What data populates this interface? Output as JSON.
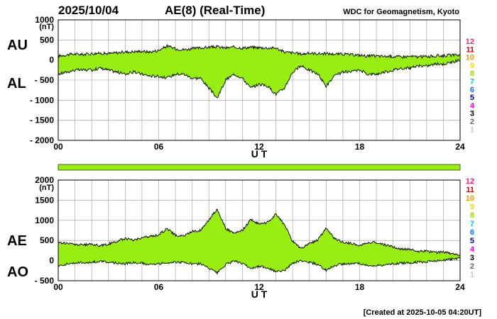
{
  "header": {
    "date": "2025/10/04",
    "title": "AE(8)  (Real-Time)",
    "source": "WDC for Geomagnetism, Kyoto"
  },
  "footer": {
    "created": "[Created at 2025-10-05 04:20UT]"
  },
  "station_legend": {
    "labels": [
      "12",
      "11",
      "10",
      "9",
      "8",
      "7",
      "6",
      "5",
      "4",
      "3",
      "2",
      "1"
    ],
    "colors": [
      "#ff1f7a",
      "#e00000",
      "#ff9900",
      "#f2e000",
      "#99dd00",
      "#00cccc",
      "#0077ff",
      "#0000aa",
      "#ee00ee",
      "#000000",
      "#666666",
      "#c8c8c8"
    ]
  },
  "colors": {
    "fill": "#99ee11",
    "line": "#000000",
    "grid": "#999999",
    "coverage_bar": "#99ee11"
  },
  "chart_data": [
    {
      "type": "area",
      "panel": "AU-AL",
      "label_upper": "AU",
      "label_lower": "AL",
      "unit": "(nT)",
      "xlabel": "U T",
      "xlim": [
        0,
        24
      ],
      "ylim": [
        -2000,
        1000
      ],
      "x_ticks": [
        "00",
        "06",
        "12",
        "18",
        "24"
      ],
      "y_ticks": [
        "1000",
        "500",
        "0",
        "- 500",
        "- 1000",
        "- 1500",
        "- 2000"
      ],
      "y_tick_values": [
        1000,
        500,
        0,
        -500,
        -1000,
        -1500,
        -2000
      ],
      "grid": true,
      "x": [
        0,
        0.5,
        1,
        1.5,
        2,
        2.5,
        3,
        3.5,
        4,
        4.5,
        5,
        5.5,
        6,
        6.5,
        7,
        7.5,
        8,
        8.5,
        9,
        9.5,
        10,
        10.5,
        11,
        11.5,
        12,
        12.5,
        13,
        13.5,
        14,
        14.5,
        15,
        15.5,
        16,
        16.5,
        17,
        17.5,
        18,
        18.5,
        19,
        19.5,
        20,
        20.5,
        21,
        21.5,
        22,
        22.5,
        23,
        23.5,
        24
      ],
      "series": [
        {
          "name": "AU",
          "values": [
            100,
            130,
            150,
            140,
            160,
            170,
            160,
            180,
            200,
            210,
            220,
            200,
            240,
            350,
            280,
            260,
            280,
            300,
            320,
            330,
            300,
            320,
            300,
            320,
            310,
            300,
            300,
            200,
            180,
            150,
            170,
            160,
            160,
            150,
            150,
            130,
            120,
            100,
            100,
            90,
            90,
            80,
            90,
            80,
            90,
            100,
            110,
            120,
            120
          ]
        },
        {
          "name": "AL",
          "values": [
            -350,
            -300,
            -250,
            -250,
            -250,
            -200,
            -250,
            -300,
            -350,
            -300,
            -350,
            -400,
            -400,
            -450,
            -350,
            -350,
            -450,
            -450,
            -700,
            -950,
            -500,
            -350,
            -450,
            -700,
            -600,
            -650,
            -850,
            -700,
            -300,
            -150,
            -250,
            -350,
            -650,
            -400,
            -300,
            -300,
            -250,
            -350,
            -350,
            -300,
            -250,
            -200,
            -200,
            -150,
            -150,
            -100,
            -100,
            -50,
            0
          ]
        }
      ]
    },
    {
      "type": "area",
      "panel": "AE-AO",
      "label_upper": "AE",
      "label_lower": "AO",
      "unit": "(nT)",
      "xlabel": "U T",
      "xlim": [
        0,
        24
      ],
      "ylim": [
        -500,
        2000
      ],
      "x_ticks": [
        "00",
        "06",
        "12",
        "18",
        "24"
      ],
      "y_ticks": [
        "2000",
        "1500",
        "1000",
        "500",
        "0",
        "- 500"
      ],
      "y_tick_values": [
        2000,
        1500,
        1000,
        500,
        0,
        -500
      ],
      "grid": true,
      "x": [
        0,
        0.5,
        1,
        1.5,
        2,
        2.5,
        3,
        3.5,
        4,
        4.5,
        5,
        5.5,
        6,
        6.5,
        7,
        7.5,
        8,
        8.5,
        9,
        9.5,
        10,
        10.5,
        11,
        11.5,
        12,
        12.5,
        13,
        13.5,
        14,
        14.5,
        15,
        15.5,
        16,
        16.5,
        17,
        17.5,
        18,
        18.5,
        19,
        19.5,
        20,
        20.5,
        21,
        21.5,
        22,
        22.5,
        23,
        23.5,
        24
      ],
      "series": [
        {
          "name": "AE",
          "values": [
            450,
            430,
            400,
            390,
            410,
            370,
            410,
            480,
            550,
            510,
            570,
            600,
            640,
            800,
            630,
            610,
            730,
            750,
            1020,
            1280,
            800,
            670,
            750,
            1020,
            910,
            950,
            1150,
            900,
            480,
            300,
            420,
            510,
            810,
            550,
            450,
            430,
            370,
            450,
            450,
            390,
            340,
            280,
            290,
            230,
            240,
            200,
            210,
            170,
            120
          ]
        },
        {
          "name": "AO",
          "values": [
            -125,
            -85,
            -50,
            -55,
            -45,
            -15,
            -45,
            -60,
            -75,
            -45,
            -65,
            -100,
            -80,
            -50,
            -35,
            -45,
            -85,
            -75,
            -190,
            -310,
            -100,
            -15,
            -75,
            -190,
            -145,
            -175,
            -275,
            -250,
            -60,
            0,
            -40,
            -95,
            -245,
            -125,
            -75,
            -85,
            -65,
            -125,
            -125,
            -105,
            -80,
            -60,
            -55,
            -35,
            -30,
            0,
            5,
            35,
            60
          ]
        }
      ]
    }
  ]
}
